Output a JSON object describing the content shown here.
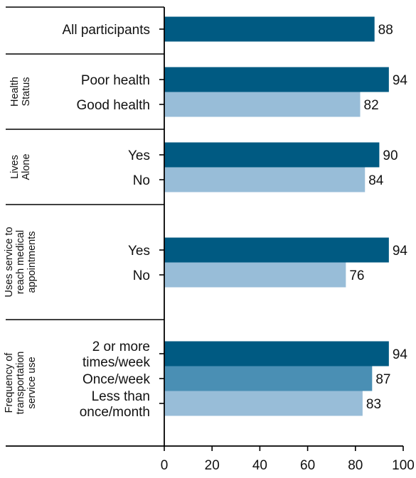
{
  "chart_data": {
    "type": "bar",
    "orientation": "horizontal",
    "xlim": [
      0,
      100
    ],
    "x_ticks": [
      "0",
      "20",
      "40",
      "60",
      "80",
      "100"
    ],
    "colors": {
      "dark": "#005A82",
      "medium": "#4A8FB4",
      "light": "#98BDD8",
      "axis": "#000000",
      "text": "#111111"
    },
    "groups": [
      {
        "label_lines": [],
        "bars": [
          {
            "label_lines": [
              "All participants"
            ],
            "value": 88,
            "value_label": "88",
            "shade": "dark"
          }
        ]
      },
      {
        "label_lines": [
          "Health",
          "Status"
        ],
        "bars": [
          {
            "label_lines": [
              "Poor health"
            ],
            "value": 94,
            "value_label": "94",
            "shade": "dark"
          },
          {
            "label_lines": [
              "Good health"
            ],
            "value": 82,
            "value_label": "82",
            "shade": "light"
          }
        ]
      },
      {
        "label_lines": [
          "Lives",
          "Alone"
        ],
        "bars": [
          {
            "label_lines": [
              "Yes"
            ],
            "value": 90,
            "value_label": "90",
            "shade": "dark"
          },
          {
            "label_lines": [
              "No"
            ],
            "value": 84,
            "value_label": "84",
            "shade": "light"
          }
        ]
      },
      {
        "label_lines": [
          "Uses service to",
          "reach medical",
          "appointments"
        ],
        "bars": [
          {
            "label_lines": [
              "Yes"
            ],
            "value": 94,
            "value_label": "94",
            "shade": "dark"
          },
          {
            "label_lines": [
              "No"
            ],
            "value": 76,
            "value_label": "76",
            "shade": "light"
          }
        ]
      },
      {
        "label_lines": [
          "Frequency of",
          "transportation",
          "service use"
        ],
        "bars": [
          {
            "label_lines": [
              "2 or more",
              "times/week"
            ],
            "value": 94,
            "value_label": "94",
            "shade": "dark"
          },
          {
            "label_lines": [
              "Once/week"
            ],
            "value": 87,
            "value_label": "87",
            "shade": "medium"
          },
          {
            "label_lines": [
              "Less than",
              "once/month"
            ],
            "value": 83,
            "value_label": "83",
            "shade": "light"
          }
        ]
      }
    ]
  }
}
